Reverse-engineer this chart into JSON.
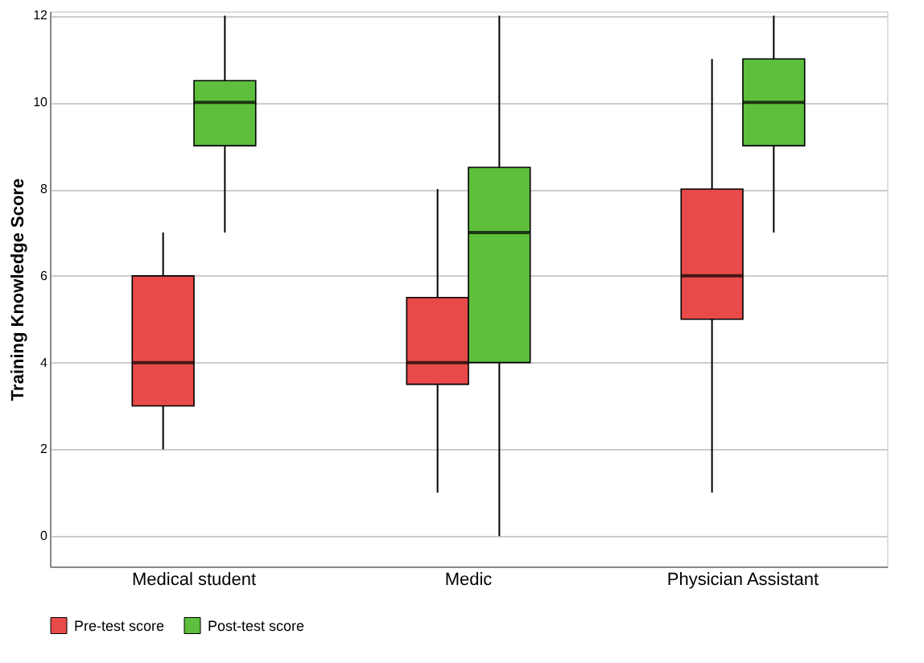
{
  "chart_data": {
    "type": "box",
    "ylabel": "Training Knowledge Score",
    "categories": [
      "Medical student",
      "Medic",
      "Physician Assistant"
    ],
    "ylim": [
      -0.7,
      12.1
    ],
    "yticks": [
      0,
      2,
      4,
      6,
      8,
      10,
      12
    ],
    "grid": "y",
    "legend": "bottom",
    "series": [
      {
        "name": "Pre-test score",
        "color": "#e84a4a",
        "boxes": [
          {
            "low": 2,
            "q1": 3,
            "median": 4,
            "q3": 6,
            "high": 7
          },
          {
            "low": 1,
            "q1": 3.5,
            "median": 4,
            "q3": 5.5,
            "high": 8
          },
          {
            "low": 1,
            "q1": 5,
            "median": 6,
            "q3": 8,
            "high": 11
          }
        ]
      },
      {
        "name": "Post-test score",
        "color": "#5dbf3b",
        "boxes": [
          {
            "low": 7,
            "q1": 9,
            "median": 10,
            "q3": 10.5,
            "high": 12
          },
          {
            "low": 0,
            "q1": 4,
            "median": 7,
            "q3": 8.5,
            "high": 12
          },
          {
            "low": 7,
            "q1": 9,
            "median": 10,
            "q3": 11,
            "high": 12
          }
        ]
      }
    ]
  }
}
